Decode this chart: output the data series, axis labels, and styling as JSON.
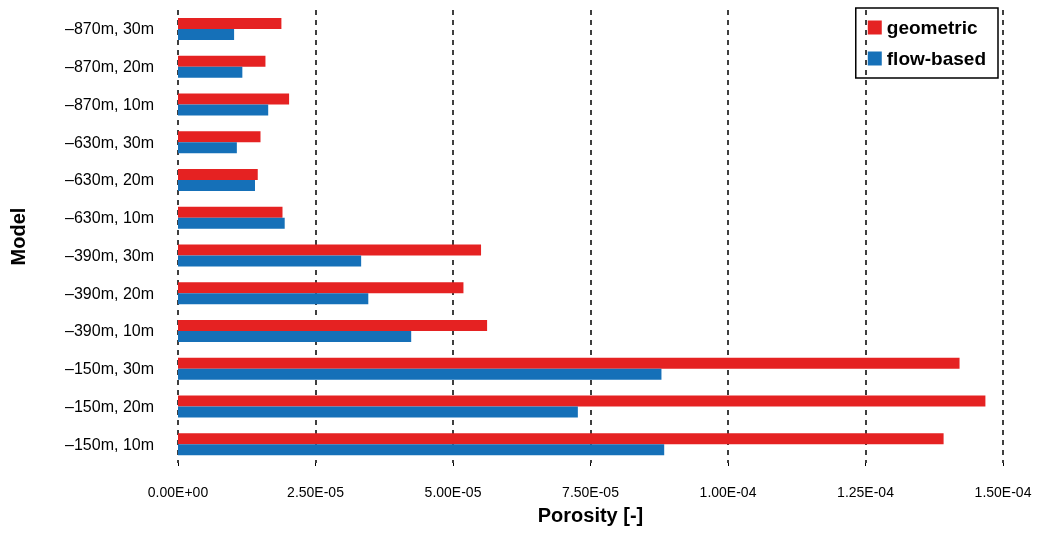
{
  "chart_data": {
    "type": "bar",
    "orientation": "horizontal",
    "xlabel": "Porosity [-]",
    "ylabel": "Model",
    "categories": [
      "–870m, 30m",
      "–870m, 20m",
      "–870m, 10m",
      "–630m, 30m",
      "–630m, 20m",
      "–630m, 10m",
      "–390m, 30m",
      "–390m, 20m",
      "–390m, 10m",
      "–150m, 30m",
      "–150m, 20m",
      "–150m, 10m"
    ],
    "series": [
      {
        "name": "geometric",
        "color": "#e52222",
        "values": [
          1.88e-05,
          1.59e-05,
          2.02e-05,
          1.5e-05,
          1.45e-05,
          1.9e-05,
          5.51e-05,
          5.19e-05,
          5.62e-05,
          0.0001421,
          0.0001468,
          0.0001392
        ]
      },
      {
        "name": "flow-based",
        "color": "#1570b8",
        "values": [
          1.02e-05,
          1.17e-05,
          1.64e-05,
          1.07e-05,
          1.4e-05,
          1.94e-05,
          3.33e-05,
          3.46e-05,
          4.24e-05,
          8.79e-05,
          7.27e-05,
          8.84e-05
        ]
      }
    ],
    "xlim": [
      0,
      0.00015
    ],
    "xticks": [
      {
        "value": 0,
        "label": "0.00E+00"
      },
      {
        "value": 2.5e-05,
        "label": "2.50E-05"
      },
      {
        "value": 5e-05,
        "label": "5.00E-05"
      },
      {
        "value": 7.5e-05,
        "label": "7.50E-05"
      },
      {
        "value": 0.0001,
        "label": "1.00E-04"
      },
      {
        "value": 0.000125,
        "label": "1.25E-04"
      },
      {
        "value": 0.00015,
        "label": "1.50E-04"
      }
    ],
    "grid": "x",
    "legend": "top right"
  }
}
